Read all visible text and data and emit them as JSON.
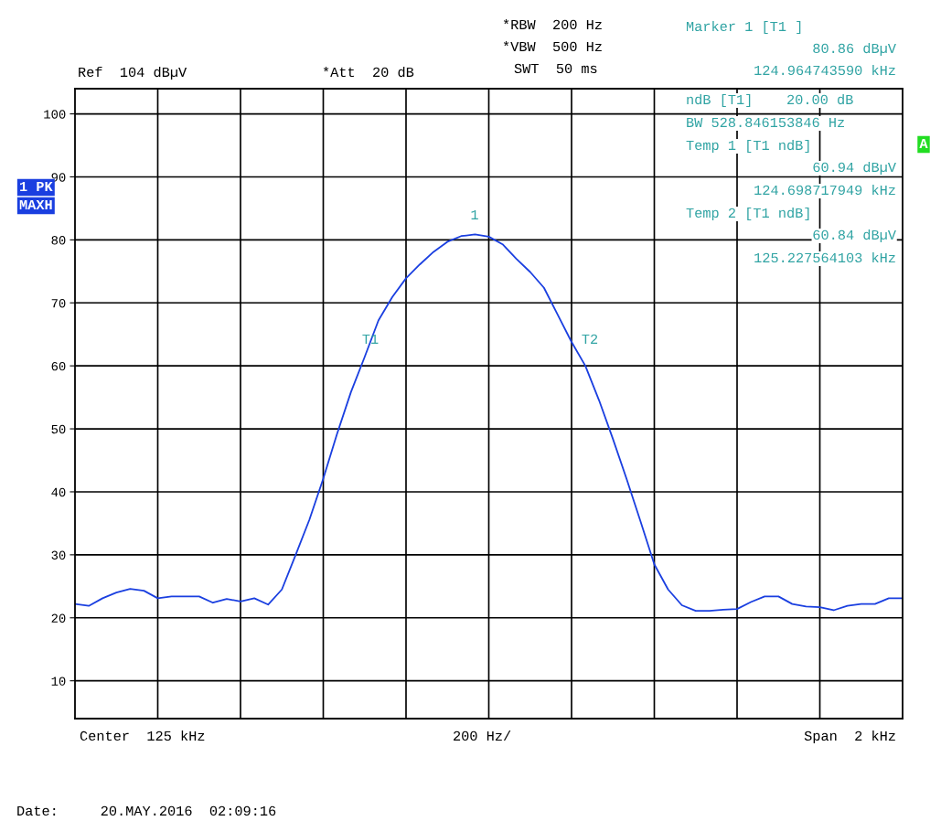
{
  "chart_data": {
    "type": "line",
    "categories": [
      null,
      null,
      null,
      null,
      null,
      null,
      null,
      null,
      null,
      null,
      null,
      null,
      null,
      null,
      null,
      null,
      null,
      null,
      null,
      null,
      null,
      null,
      null,
      null,
      null,
      null,
      null,
      null,
      null,
      null,
      null,
      null,
      null,
      null,
      null,
      null,
      null,
      null,
      null,
      null,
      null,
      null,
      null,
      null,
      null,
      null,
      null,
      null,
      null,
      null,
      null,
      null,
      null,
      null,
      null,
      null,
      null,
      null,
      null,
      null,
      null
    ],
    "series": [
      {
        "color": "#1a3fe0",
        "values": [
          22.2,
          21.9,
          23.1,
          24.0,
          24.6,
          24.3,
          23.1,
          23.4,
          23.4,
          23.4,
          22.4,
          23.0,
          22.6,
          23.1,
          22.1,
          24.5,
          30.0,
          35.6,
          42.1,
          49.2,
          55.8,
          61.4,
          67.2,
          70.9,
          73.9,
          76.1,
          78.1,
          79.7,
          80.6,
          80.86,
          80.5,
          79.3,
          77.0,
          74.9,
          72.4,
          68.1,
          63.8,
          60.0,
          54.5,
          48.4,
          42.0,
          35.3,
          28.5,
          24.5,
          22.0,
          21.1,
          21.1,
          21.3,
          21.4,
          22.5,
          23.4,
          23.4,
          22.2,
          21.8,
          21.7,
          21.2,
          21.9,
          22.2,
          22.2,
          23.1,
          23.1
        ]
      }
    ],
    "ylim": [
      4,
      104
    ],
    "yticks": [
      10,
      20,
      30,
      40,
      50,
      60,
      70,
      80,
      90,
      100
    ],
    "grid": true,
    "marker": "none",
    "line_style": "solid",
    "annotations": [
      "Ref  104 dBµV",
      "*Att  20 dB",
      "*RBW  200 Hz",
      "*VBW  500 Hz",
      "SWT  50 ms",
      "Marker 1 [T1 ]",
      "80.86 dBµV",
      "124.964743590 kHz",
      "ndB [T1]    20.00 dB",
      "BW 528.846153846 Hz",
      "Temp 1 [T1 ndB]",
      "60.94 dBµV",
      "124.698717949 kHz",
      "Temp 2 [T1 ndB]",
      "60.84 dBµV",
      "125.227564103 kHz",
      "1 PK",
      "MAXH",
      "A",
      "Center  125 kHz",
      "200 Hz/",
      "Span  2 kHz",
      "Date:     20.MAY.2016  02:09:16",
      "1",
      "T1",
      "T2"
    ]
  }
}
